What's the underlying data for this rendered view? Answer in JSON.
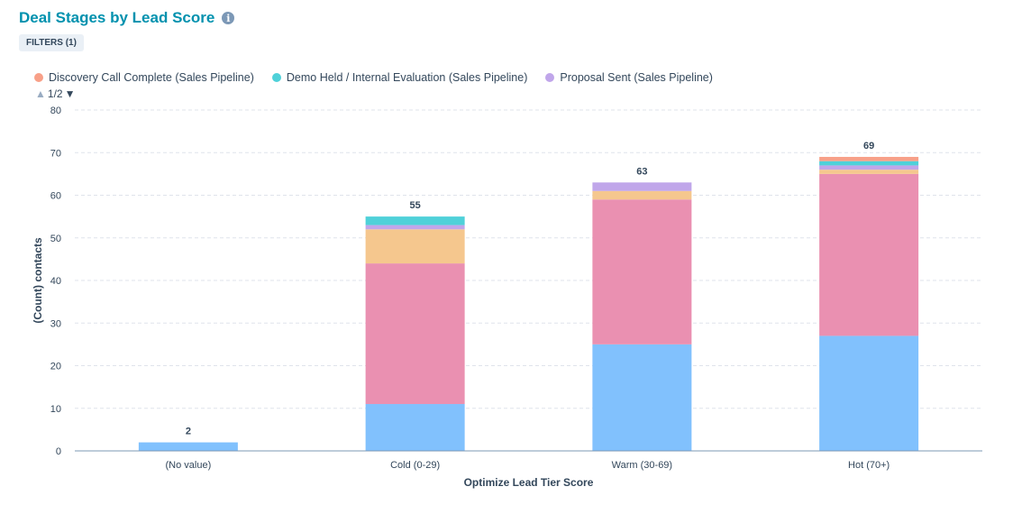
{
  "header": {
    "title": "Deal Stages by Lead Score",
    "filters_label": "FILTERS (1)"
  },
  "legend": {
    "items": [
      {
        "label": "Discovery Call Complete (Sales Pipeline)",
        "color": "#f8a088"
      },
      {
        "label": "Demo Held / Internal Evaluation (Sales Pipeline)",
        "color": "#4fd1d9"
      },
      {
        "label": "Proposal Sent (Sales Pipeline)",
        "color": "#c0a6ea"
      }
    ],
    "page": "1/2"
  },
  "chart_data": {
    "type": "bar",
    "stacked": true,
    "title": "Deal Stages by Lead Score",
    "xlabel": "Optimize Lead Tier Score",
    "ylabel": "(Count) contacts",
    "ylim": [
      0,
      80
    ],
    "yticks": [
      0,
      10,
      20,
      30,
      40,
      50,
      60,
      70,
      80
    ],
    "grid": true,
    "legend_position": "top-left",
    "categories": [
      "(No value)",
      "Cold (0-29)",
      "Warm (30-69)",
      "Hot (70+)"
    ],
    "totals": [
      2,
      55,
      63,
      69
    ],
    "series": [
      {
        "color": "#81c1fd",
        "values": [
          2,
          11,
          25,
          27
        ]
      },
      {
        "color": "#ea90b1",
        "values": [
          0,
          33,
          34,
          38
        ]
      },
      {
        "color": "#f5c78e",
        "values": [
          0,
          8,
          2,
          1
        ]
      },
      {
        "name": "Proposal Sent (Sales Pipeline)",
        "color": "#c0a6ea",
        "values": [
          0,
          1,
          2,
          1
        ]
      },
      {
        "name": "Demo Held / Internal Evaluation (Sales Pipeline)",
        "color": "#4fd1d9",
        "values": [
          0,
          2,
          0,
          1
        ]
      },
      {
        "name": "Discovery Call Complete (Sales Pipeline)",
        "color": "#f8a088",
        "values": [
          0,
          0,
          0,
          1
        ]
      }
    ]
  }
}
